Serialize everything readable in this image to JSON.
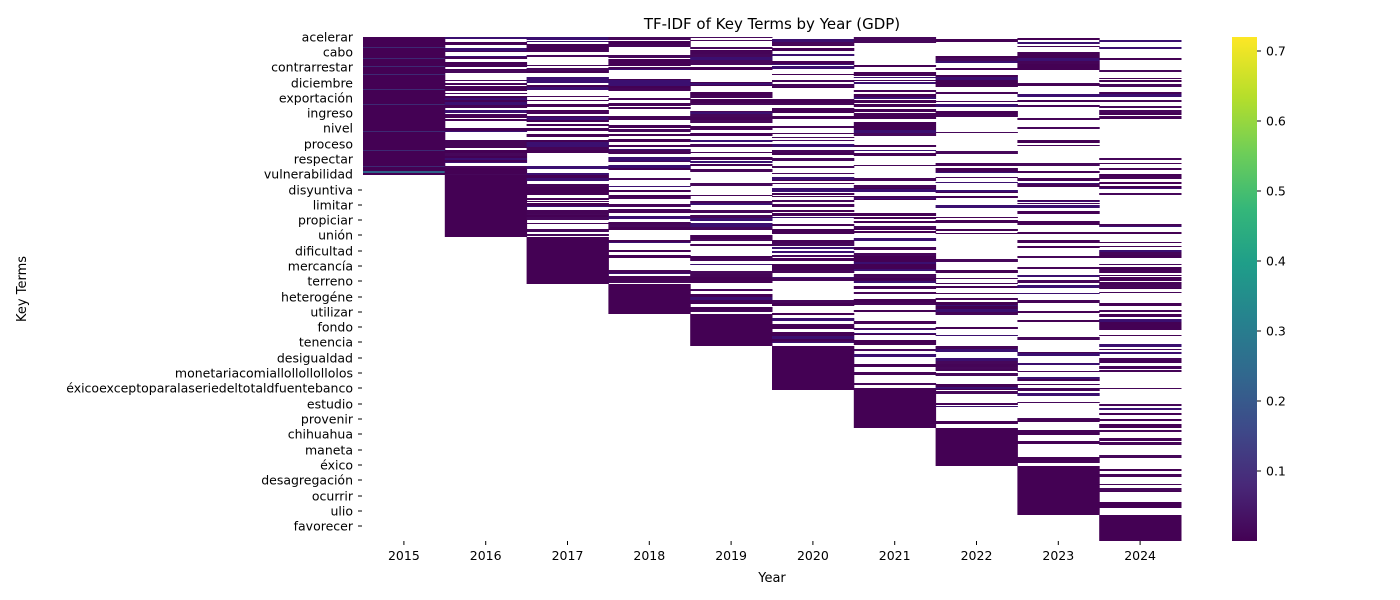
{
  "chart_data": {
    "type": "heatmap",
    "title": "TF-IDF of Key Terms by Year (GDP)",
    "xlabel": "Year",
    "ylabel": "Key Terms",
    "x": [
      "2015",
      "2016",
      "2017",
      "2018",
      "2019",
      "2020",
      "2021",
      "2022",
      "2023",
      "2024"
    ],
    "y_tick_labels": [
      "acelerar",
      "cabo",
      "contrarrestar",
      "diciembre",
      "exportación",
      "ingreso",
      "nivel",
      "proceso",
      "respectar",
      "vulnerabilidad",
      "disyuntiva",
      "limitar",
      "propiciar",
      "unión",
      "dificultad",
      "mercancía",
      "terreno",
      "heterogéne",
      "utilizar",
      "fondo",
      "tenencia",
      "desigualdad",
      "monetariacomiallollollollolos",
      "éxicoexceptoparalaseriedeltotaldfuentebanco",
      "estudio",
      "provenir",
      "chihuahua",
      "maneta",
      "éxico",
      "desagregación",
      "ocurrir",
      "ulio",
      "favorecer"
    ],
    "first_year_blocks": [
      {
        "year": "2015",
        "from_label": "acelerar",
        "to_label": "vulnerabilidad"
      },
      {
        "year": "2016",
        "from_label": "vulnerabilidad",
        "to_label": "unión"
      },
      {
        "year": "2017",
        "from_label": "unión",
        "to_label": "terreno"
      },
      {
        "year": "2018",
        "from_label": "terreno",
        "to_label": "utilizar"
      },
      {
        "year": "2019",
        "from_label": "utilizar",
        "to_label": "tenencia"
      },
      {
        "year": "2020",
        "from_label": "tenencia",
        "to_label": "éxicoexceptoparalaseriedeltotaldfuentebanco"
      },
      {
        "year": "2021",
        "from_label": "éxicoexceptoparalaseriedeltotaldfuentebanco",
        "to_label": "provenir"
      },
      {
        "year": "2022",
        "from_label": "provenir",
        "to_label": "éxico"
      },
      {
        "year": "2023",
        "from_label": "éxico",
        "to_label": "ulio"
      },
      {
        "year": "2024",
        "from_label": "ulio",
        "to_label": "favorecer"
      }
    ],
    "cell_values_note": "Nonzero cells are mostly ~0.01–0.05 (dark purple); zero/absent cells are blank (white).",
    "colormap": "viridis",
    "colorbar": {
      "range": [
        0.0,
        0.72
      ],
      "ticks": [
        0.1,
        0.2,
        0.3,
        0.4,
        0.5,
        0.6,
        0.7
      ],
      "tick_labels": [
        "0.1",
        "0.2",
        "0.3",
        "0.4",
        "0.5",
        "0.6",
        "0.7"
      ]
    },
    "grid": false,
    "legend": "colorbar-right"
  },
  "colors": {
    "viridis_stops": [
      "#440154",
      "#482878",
      "#3e4989",
      "#31688e",
      "#26828e",
      "#1f9e89",
      "#35b779",
      "#6ece58",
      "#b5de2b",
      "#fde725"
    ],
    "cell_dark": "#440154",
    "background": "#ffffff"
  }
}
